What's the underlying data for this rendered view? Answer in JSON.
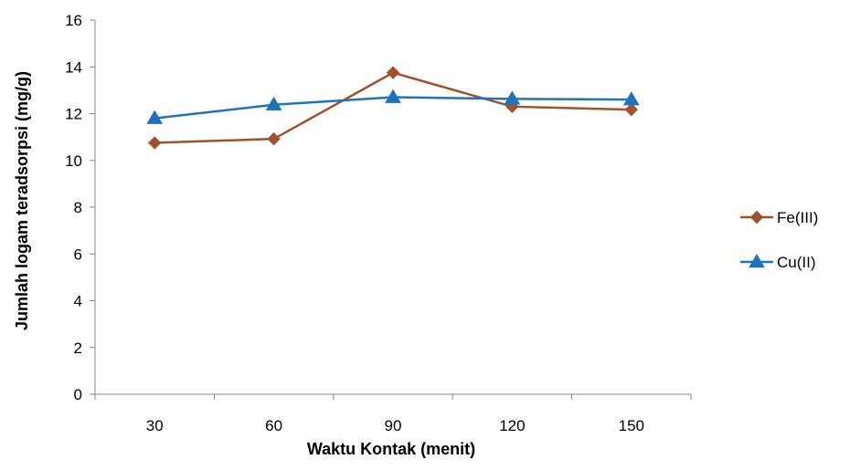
{
  "chart_data": {
    "type": "line",
    "title": "",
    "xlabel": "Waktu Kontak (menit)",
    "ylabel": "Jumlah logam  teradsorpsi (mg/g)",
    "categories": [
      "30",
      "60",
      "90",
      "120",
      "150"
    ],
    "ylim": [
      0,
      16
    ],
    "yticks": [
      "0",
      "2",
      "4",
      "6",
      "8",
      "10",
      "12",
      "14",
      "16"
    ],
    "grid": false,
    "legend_position": "right",
    "series": [
      {
        "name": "Fe(III)",
        "values": [
          10.75,
          10.92,
          13.75,
          12.3,
          12.17
        ],
        "color": "#A0522D",
        "marker": "diamond"
      },
      {
        "name": "Cu(II)",
        "values": [
          11.8,
          12.38,
          12.7,
          12.63,
          12.6
        ],
        "color": "#1E73BE",
        "marker": "triangle"
      }
    ]
  }
}
